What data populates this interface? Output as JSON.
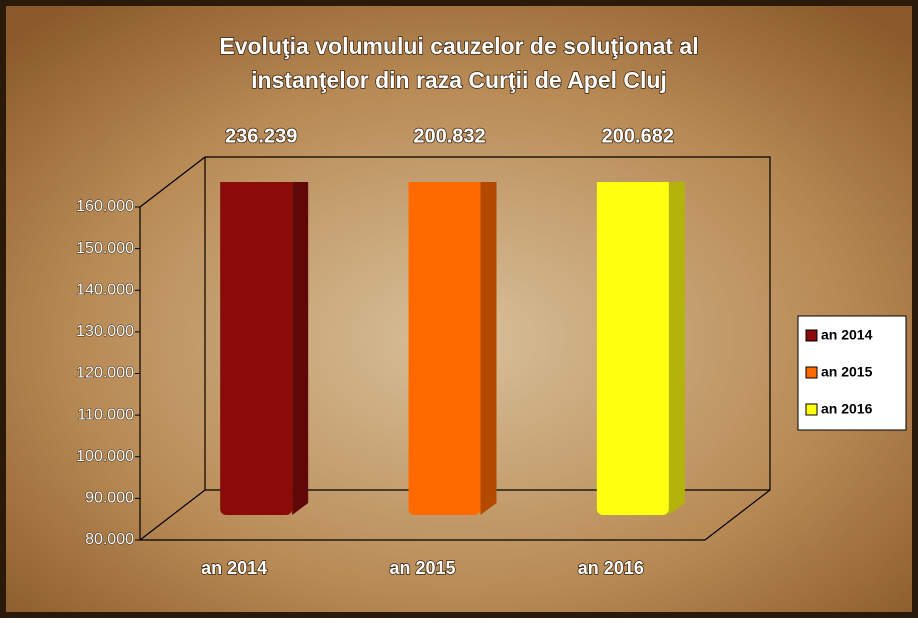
{
  "chart_data": {
    "type": "bar3d",
    "title": [
      "Evoluţia volumului cauzelor de soluţionat al",
      "instanţelor din raza Curţii de Apel Cluj"
    ],
    "categories": [
      "an 2014",
      "an 2015",
      "an 2016"
    ],
    "values": [
      236239,
      200832,
      200682
    ],
    "value_labels": [
      "236.239",
      "200.832",
      "200.682"
    ],
    "colors": [
      "#8b0a0a",
      "#ff6a00",
      "#ffff10"
    ],
    "ylim": [
      80000,
      160000
    ],
    "yticks": [
      {
        "value": 80000,
        "label": "80.000"
      },
      {
        "value": 90000,
        "label": "90.000"
      },
      {
        "value": 100000,
        "label": "100.000"
      },
      {
        "value": 110000,
        "label": "110.000"
      },
      {
        "value": 120000,
        "label": "120.000"
      },
      {
        "value": 130000,
        "label": "130.000"
      },
      {
        "value": 140000,
        "label": "140.000"
      },
      {
        "value": 150000,
        "label": "150.000"
      },
      {
        "value": 160000,
        "label": "160.000"
      }
    ],
    "legend": "right"
  }
}
